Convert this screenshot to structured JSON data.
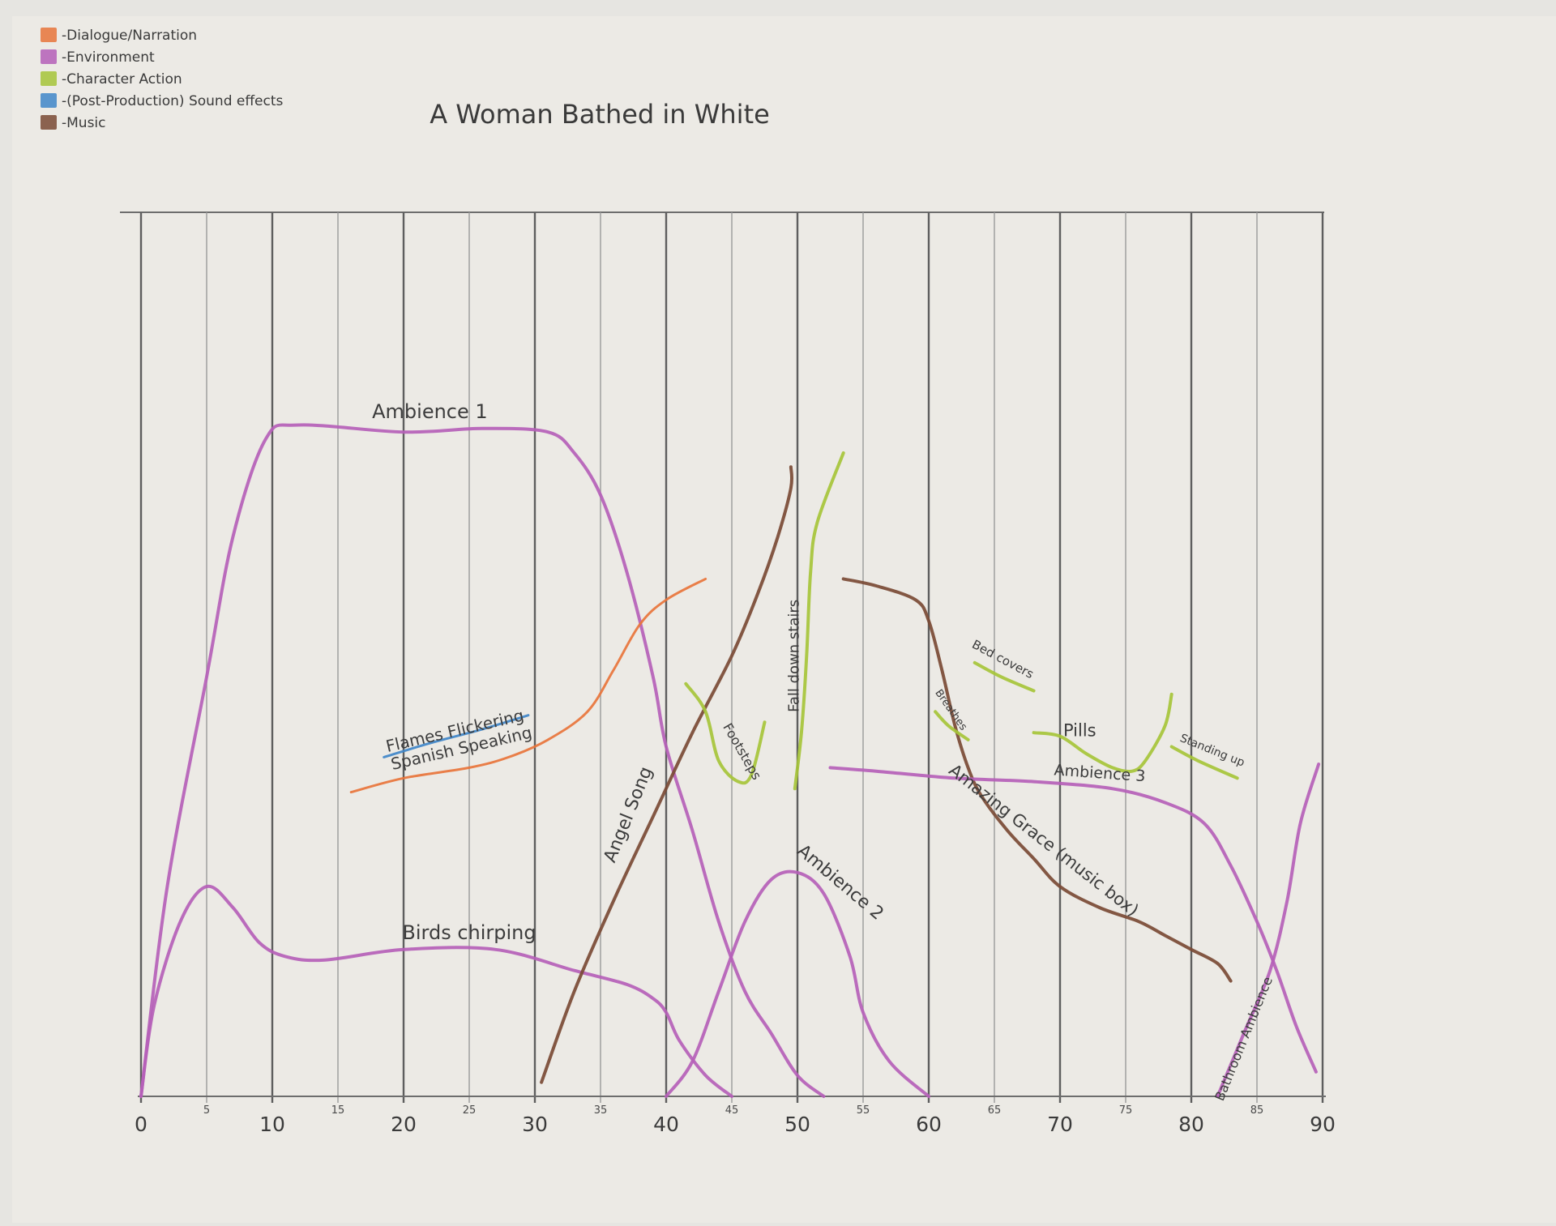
{
  "chart_data": {
    "type": "line",
    "title": "A Woman Bathed in White",
    "xlabel": "",
    "ylabel": "",
    "xlim": [
      0,
      90
    ],
    "ylim": [
      0,
      100
    ],
    "grid": true,
    "legend_position": "top-left",
    "x_tick_labels_major": [
      {
        "x": 0,
        "label": "0"
      },
      {
        "x": 10,
        "label": "10"
      },
      {
        "x": 20,
        "label": "20"
      },
      {
        "x": 30,
        "label": "30"
      },
      {
        "x": 40,
        "label": "40"
      },
      {
        "x": 50,
        "label": "50"
      },
      {
        "x": 60,
        "label": "60"
      },
      {
        "x": 70,
        "label": "70"
      },
      {
        "x": 80,
        "label": "80"
      },
      {
        "x": 90,
        "label": "90"
      }
    ],
    "x_tick_labels_minor": [
      {
        "x": 5,
        "label": "5"
      },
      {
        "x": 15,
        "label": "15"
      },
      {
        "x": 25,
        "label": "25"
      },
      {
        "x": 35,
        "label": "35"
      },
      {
        "x": 45,
        "label": "45"
      },
      {
        "x": 55,
        "label": "55"
      },
      {
        "x": 65,
        "label": "65"
      },
      {
        "x": 75,
        "label": "75"
      },
      {
        "x": 85,
        "label": "85"
      }
    ],
    "legend": [
      {
        "label": "-Dialogue/Narration",
        "color": "#e8743b"
      },
      {
        "label": "-Environment",
        "color": "#b55fb8"
      },
      {
        "label": "-Character Action",
        "color": "#a6c43a"
      },
      {
        "label": "-(Post-Production) Sound effects",
        "color": "#3f86c9"
      },
      {
        "label": "-Music",
        "color": "#7a4a35"
      }
    ],
    "series": [
      {
        "name": "Ambience 1",
        "category": "Environment",
        "color": "#b55fb8",
        "width": 4,
        "points": [
          [
            0,
            0
          ],
          [
            2,
            30
          ],
          [
            5,
            60
          ],
          [
            7,
            80
          ],
          [
            9.5,
            94
          ],
          [
            12,
            96
          ],
          [
            20,
            95
          ],
          [
            26,
            95.5
          ],
          [
            31,
            95
          ],
          [
            33,
            92
          ],
          [
            35,
            86
          ],
          [
            37,
            75
          ],
          [
            39,
            60
          ],
          [
            40,
            50
          ],
          [
            42,
            38
          ],
          [
            44,
            25
          ],
          [
            46,
            15
          ],
          [
            48,
            9
          ],
          [
            50,
            3
          ],
          [
            52,
            0
          ]
        ],
        "label_x": 22,
        "label_y": 97,
        "label_rot": 0,
        "label_size": 24
      },
      {
        "name": "Birds chirping",
        "category": "Environment",
        "color": "#b55fb8",
        "width": 4,
        "points": [
          [
            0,
            0
          ],
          [
            1,
            13
          ],
          [
            3,
            25
          ],
          [
            5,
            30
          ],
          [
            7,
            27
          ],
          [
            9,
            22
          ],
          [
            11,
            20
          ],
          [
            14,
            19.5
          ],
          [
            20,
            21
          ],
          [
            27,
            21
          ],
          [
            33,
            18
          ],
          [
            37,
            16
          ],
          [
            39,
            14
          ],
          [
            40,
            12
          ],
          [
            41,
            8
          ],
          [
            43,
            3
          ],
          [
            45,
            0
          ]
        ],
        "label_x": 25,
        "label_y": 22.5,
        "label_rot": 0,
        "label_size": 24
      },
      {
        "name": "Flames Flickering",
        "category": "(Post-Production) Sound effects",
        "color": "#3f86c9",
        "width": 3,
        "points": [
          [
            18.5,
            48.5
          ],
          [
            22,
            50.5
          ],
          [
            26,
            52.5
          ],
          [
            29.5,
            54.5
          ]
        ],
        "label_x": 24,
        "label_y": 51.5,
        "label_rot": -13,
        "label_size": 20
      },
      {
        "name": "Spanish Speaking",
        "category": "Dialogue/Narration",
        "color": "#e8743b",
        "width": 3,
        "points": [
          [
            16,
            43.5
          ],
          [
            20,
            45.5
          ],
          [
            25,
            47
          ],
          [
            28,
            48.5
          ],
          [
            31,
            51
          ],
          [
            34,
            55
          ],
          [
            36,
            61
          ],
          [
            38,
            67.5
          ],
          [
            40,
            71
          ],
          [
            43,
            74
          ]
        ],
        "label_x": 24.5,
        "label_y": 49,
        "label_rot": -13,
        "label_size": 20
      },
      {
        "name": "Angel Song",
        "category": "Music",
        "color": "#7a4a35",
        "width": 4,
        "points": [
          [
            30.5,
            2
          ],
          [
            33,
            15
          ],
          [
            36,
            28
          ],
          [
            39,
            40
          ],
          [
            42,
            52
          ],
          [
            45,
            63
          ],
          [
            47,
            72
          ],
          [
            48.5,
            80
          ],
          [
            49.5,
            87
          ],
          [
            49.5,
            90
          ]
        ],
        "label_x": 37.5,
        "label_y": 40,
        "label_rot": -68,
        "label_size": 22
      },
      {
        "name": "Ambience 2",
        "category": "Environment",
        "color": "#b55fb8",
        "width": 4,
        "points": [
          [
            40,
            0
          ],
          [
            42,
            5
          ],
          [
            44,
            15
          ],
          [
            46,
            25
          ],
          [
            48,
            31
          ],
          [
            50,
            32
          ],
          [
            52,
            29
          ],
          [
            54,
            20
          ],
          [
            55,
            12
          ],
          [
            57,
            5
          ],
          [
            60,
            0
          ]
        ],
        "label_x": 53,
        "label_y": 30,
        "label_rot": 40,
        "label_size": 22
      },
      {
        "name": "Footsteps",
        "category": "Character Action",
        "color": "#a6c43a",
        "width": 4,
        "points": [
          [
            41.5,
            59
          ],
          [
            43,
            55
          ],
          [
            44,
            48
          ],
          [
            45.5,
            45
          ],
          [
            46.5,
            46
          ],
          [
            47.5,
            53.5
          ]
        ],
        "label_x": 45.5,
        "label_y": 49,
        "label_rot": 60,
        "label_size": 16
      },
      {
        "name": "Fall down stairs",
        "category": "Character Action",
        "color": "#a6c43a",
        "width": 4,
        "points": [
          [
            49.8,
            44
          ],
          [
            50.3,
            52
          ],
          [
            50.7,
            63
          ],
          [
            51,
            75
          ],
          [
            51.5,
            82
          ],
          [
            53.5,
            92
          ]
        ],
        "label_x": 50.1,
        "label_y": 63,
        "label_rot": -90,
        "label_size": 18
      },
      {
        "name": "Amazing Grace (music box)",
        "category": "Music",
        "color": "#7a4a35",
        "width": 4,
        "points": [
          [
            53.5,
            74
          ],
          [
            56,
            73
          ],
          [
            59,
            71
          ],
          [
            60,
            68
          ],
          [
            61,
            61
          ],
          [
            62,
            53
          ],
          [
            63,
            47
          ],
          [
            64,
            43
          ],
          [
            66,
            38
          ],
          [
            68,
            34
          ],
          [
            70,
            30
          ],
          [
            73,
            27
          ],
          [
            76,
            25
          ],
          [
            78,
            23
          ],
          [
            80,
            21
          ],
          [
            82,
            19
          ],
          [
            83,
            16.5
          ]
        ],
        "label_x": 68.5,
        "label_y": 36,
        "label_rot": 38,
        "label_size": 21
      },
      {
        "name": "Breathes",
        "category": "Character Action",
        "color": "#a6c43a",
        "width": 4,
        "points": [
          [
            60.5,
            55
          ],
          [
            61.5,
            53
          ],
          [
            63,
            51
          ]
        ],
        "label_x": 61.5,
        "label_y": 55,
        "label_rot": 55,
        "label_size": 13
      },
      {
        "name": "Bed covers",
        "category": "Character Action",
        "color": "#a6c43a",
        "width": 4,
        "points": [
          [
            63.5,
            62
          ],
          [
            65.5,
            60
          ],
          [
            68,
            58
          ]
        ],
        "label_x": 65.5,
        "label_y": 62,
        "label_rot": 28,
        "label_size": 15
      },
      {
        "name": "Pills",
        "category": "Character Action",
        "color": "#a6c43a",
        "width": 4,
        "points": [
          [
            68,
            52
          ],
          [
            70,
            51.5
          ],
          [
            72,
            49
          ],
          [
            74,
            47
          ],
          [
            75.5,
            46.5
          ],
          [
            76.5,
            48
          ],
          [
            78,
            53
          ],
          [
            78.5,
            57.5
          ]
        ],
        "label_x": 71.5,
        "label_y": 51.5,
        "label_rot": 0,
        "label_size": 21
      },
      {
        "name": "Standing up",
        "category": "Character Action",
        "color": "#a6c43a",
        "width": 4,
        "points": [
          [
            78.5,
            50
          ],
          [
            80.5,
            48
          ],
          [
            83.5,
            45.5
          ]
        ],
        "label_x": 81.5,
        "label_y": 49,
        "label_rot": 22,
        "label_size": 14
      },
      {
        "name": "Ambience 3",
        "category": "Environment",
        "color": "#b55fb8",
        "width": 4,
        "points": [
          [
            52.5,
            47
          ],
          [
            56,
            46.5
          ],
          [
            62,
            45.5
          ],
          [
            68,
            45
          ],
          [
            74,
            44
          ],
          [
            78,
            42
          ],
          [
            81,
            39
          ],
          [
            83,
            33
          ],
          [
            85,
            25
          ],
          [
            86.5,
            18
          ],
          [
            88,
            10
          ],
          [
            89.5,
            3.5
          ]
        ],
        "label_x": 73,
        "label_y": 45.5,
        "label_rot": 4,
        "label_size": 19
      },
      {
        "name": "Bathroom Ambience",
        "category": "Environment",
        "color": "#b55fb8",
        "width": 4,
        "points": [
          [
            82,
            0
          ],
          [
            84,
            9
          ],
          [
            86,
            18
          ],
          [
            87.3,
            28
          ],
          [
            88.3,
            39
          ],
          [
            89.7,
            47.5
          ]
        ],
        "label_x": 84.3,
        "label_y": 8,
        "label_rot": -68,
        "label_size": 16
      }
    ]
  }
}
